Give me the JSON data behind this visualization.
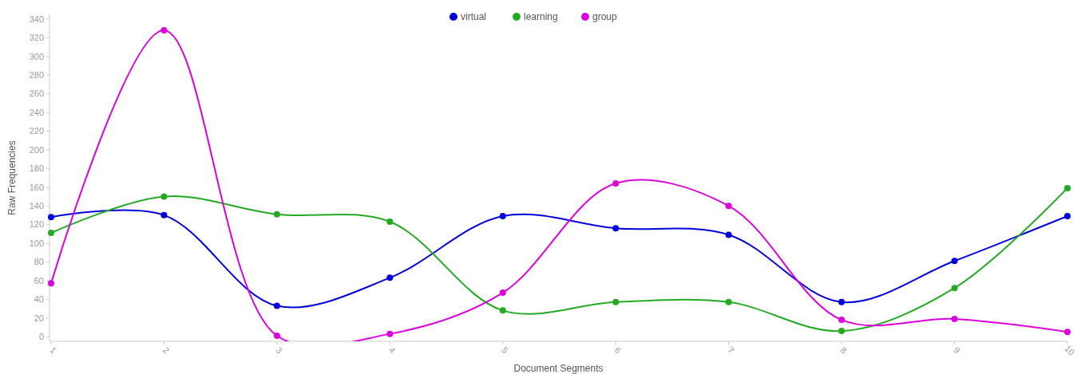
{
  "chart_data": {
    "type": "line",
    "xlabel": "Document Segments",
    "ylabel": "Raw Frequencies",
    "categories": [
      "1",
      "2",
      "3",
      "4",
      "5",
      "6",
      "7",
      "8",
      "9",
      "10"
    ],
    "series": [
      {
        "name": "virtual",
        "color": "#0000dd",
        "values": [
          128,
          130,
          33,
          63,
          129,
          116,
          109,
          37,
          81,
          129
        ]
      },
      {
        "name": "learning",
        "color": "#22aa22",
        "values": [
          111,
          150,
          131,
          123,
          28,
          37,
          37,
          6,
          52,
          159
        ]
      },
      {
        "name": "group",
        "color": "#dd00dd",
        "values": [
          57,
          328,
          1,
          3,
          47,
          164,
          140,
          18,
          19,
          5
        ]
      }
    ],
    "ylim": [
      -5,
      345
    ],
    "yticks": [
      0,
      20,
      40,
      60,
      80,
      100,
      120,
      140,
      160,
      180,
      200,
      220,
      240,
      260,
      280,
      300,
      320,
      340
    ],
    "grid": false,
    "legend": "top",
    "marker": "circle",
    "line_style": "solid"
  }
}
